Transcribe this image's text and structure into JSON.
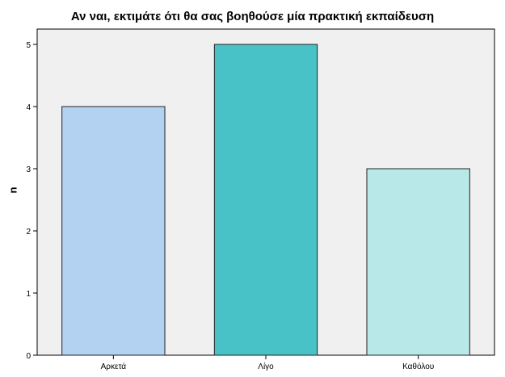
{
  "chart_data": {
    "type": "bar",
    "title": "Αν ναι, εκτιμάτε ότι θα σας βοηθούσε μία πρακτική εκπαίδευση",
    "xlabel": "",
    "ylabel": "n",
    "categories": [
      "Αρκετά",
      "Λίγο",
      "Καθόλου"
    ],
    "values": [
      4,
      5,
      3
    ],
    "ylim": [
      0,
      5
    ],
    "yticks": [
      "0",
      "1",
      "2",
      "3",
      "4",
      "5"
    ],
    "grid": false,
    "colors": [
      "#B3D1F0",
      "#48C2C6",
      "#B9E8E8"
    ],
    "plot_background": "#F0F0F0"
  }
}
